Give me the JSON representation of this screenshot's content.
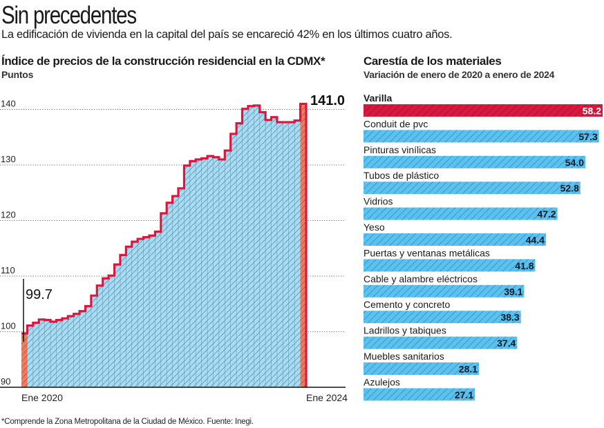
{
  "header": {
    "title": "Sin precedentes",
    "subtitle": "La edificación de vivienda en la capital del país se encareció 42% en los últimos cuatro años."
  },
  "footnote": "*Comprende la Zona Metropolitana de la Ciudad de México. Fuente: Inegi.",
  "colors": {
    "area_fill": "#a8dcf5",
    "hatch": "#5a8fa8",
    "line": "#d7193f",
    "highlight_bar": "#ef7b5c",
    "bar_blue": "#5bc2ef",
    "bar_red": "#d7193f"
  },
  "chart_data": [
    {
      "type": "area",
      "title": "Índice de precios de la construcción residencial en la CDMX*",
      "subtitle": "Puntos",
      "xlabel": "",
      "ylabel": "Puntos",
      "ylim": [
        90,
        145
      ],
      "yticks": [
        90,
        100,
        110,
        120,
        130,
        140
      ],
      "ytick_labels": [
        "90",
        "100",
        "110",
        "120",
        "130",
        "140"
      ],
      "grid": true,
      "x_tick_labels": {
        "first": "Ene 2020",
        "last": "Ene 2024"
      },
      "step": true,
      "x": [
        "2020-01",
        "2020-02",
        "2020-03",
        "2020-04",
        "2020-05",
        "2020-06",
        "2020-07",
        "2020-08",
        "2020-09",
        "2020-10",
        "2020-11",
        "2020-12",
        "2021-01",
        "2021-02",
        "2021-03",
        "2021-04",
        "2021-05",
        "2021-06",
        "2021-07",
        "2021-08",
        "2021-09",
        "2021-10",
        "2021-11",
        "2021-12",
        "2022-01",
        "2022-02",
        "2022-03",
        "2022-04",
        "2022-05",
        "2022-06",
        "2022-07",
        "2022-08",
        "2022-09",
        "2022-10",
        "2022-11",
        "2022-12",
        "2023-01",
        "2023-02",
        "2023-03",
        "2023-04",
        "2023-05",
        "2023-06",
        "2023-07",
        "2023-08",
        "2023-09",
        "2023-10",
        "2023-11",
        "2023-12",
        "2024-01"
      ],
      "values": [
        99.7,
        101.1,
        101.6,
        102.2,
        102.1,
        101.8,
        102.1,
        102.4,
        102.8,
        103.2,
        103.7,
        104.6,
        106.5,
        108.3,
        109.6,
        110.1,
        112.1,
        113.8,
        115.3,
        116.2,
        116.7,
        117.0,
        117.3,
        118.0,
        121.3,
        123.2,
        124.4,
        125.8,
        129.9,
        130.7,
        131.0,
        131.2,
        131.6,
        131.4,
        131.0,
        132.6,
        135.6,
        137.5,
        140.1,
        140.6,
        140.7,
        139.5,
        138.1,
        138.6,
        137.7,
        137.7,
        137.7,
        138.0,
        141.0
      ],
      "highlighted": [
        "2020-01",
        "2024-01"
      ],
      "annotations": [
        {
          "x": "2020-01",
          "label": "99.7"
        },
        {
          "x": "2024-01",
          "label": "141.0"
        }
      ]
    },
    {
      "type": "bar",
      "orientation": "horizontal",
      "title": "Carestía de los materiales",
      "subtitle": "Variación de enero de 2020 a enero de 2024",
      "unit": "%",
      "xlim": [
        0,
        58.2
      ],
      "categories": [
        "Varilla",
        "Conduit de pvc",
        "Pinturas vinílicas",
        "Tubos de plástico",
        "Vidrios",
        "Yeso",
        "Puertas y ventanas metálicas",
        "Cable y alambre eléctricos",
        "Cemento y concreto",
        "Ladrillos y tabiques",
        "Muebles sanitarios",
        "Azulejos"
      ],
      "values": [
        58.2,
        57.3,
        54.0,
        52.8,
        47.2,
        44.4,
        41.8,
        39.1,
        38.3,
        37.4,
        28.1,
        27.1
      ],
      "value_labels": [
        "58.2",
        "57.3",
        "54.0",
        "52.8",
        "47.2",
        "44.4",
        "41.8",
        "39.1",
        "38.3",
        "37.4",
        "28.1",
        "27.1"
      ],
      "highlighted": [
        "Varilla"
      ]
    }
  ]
}
